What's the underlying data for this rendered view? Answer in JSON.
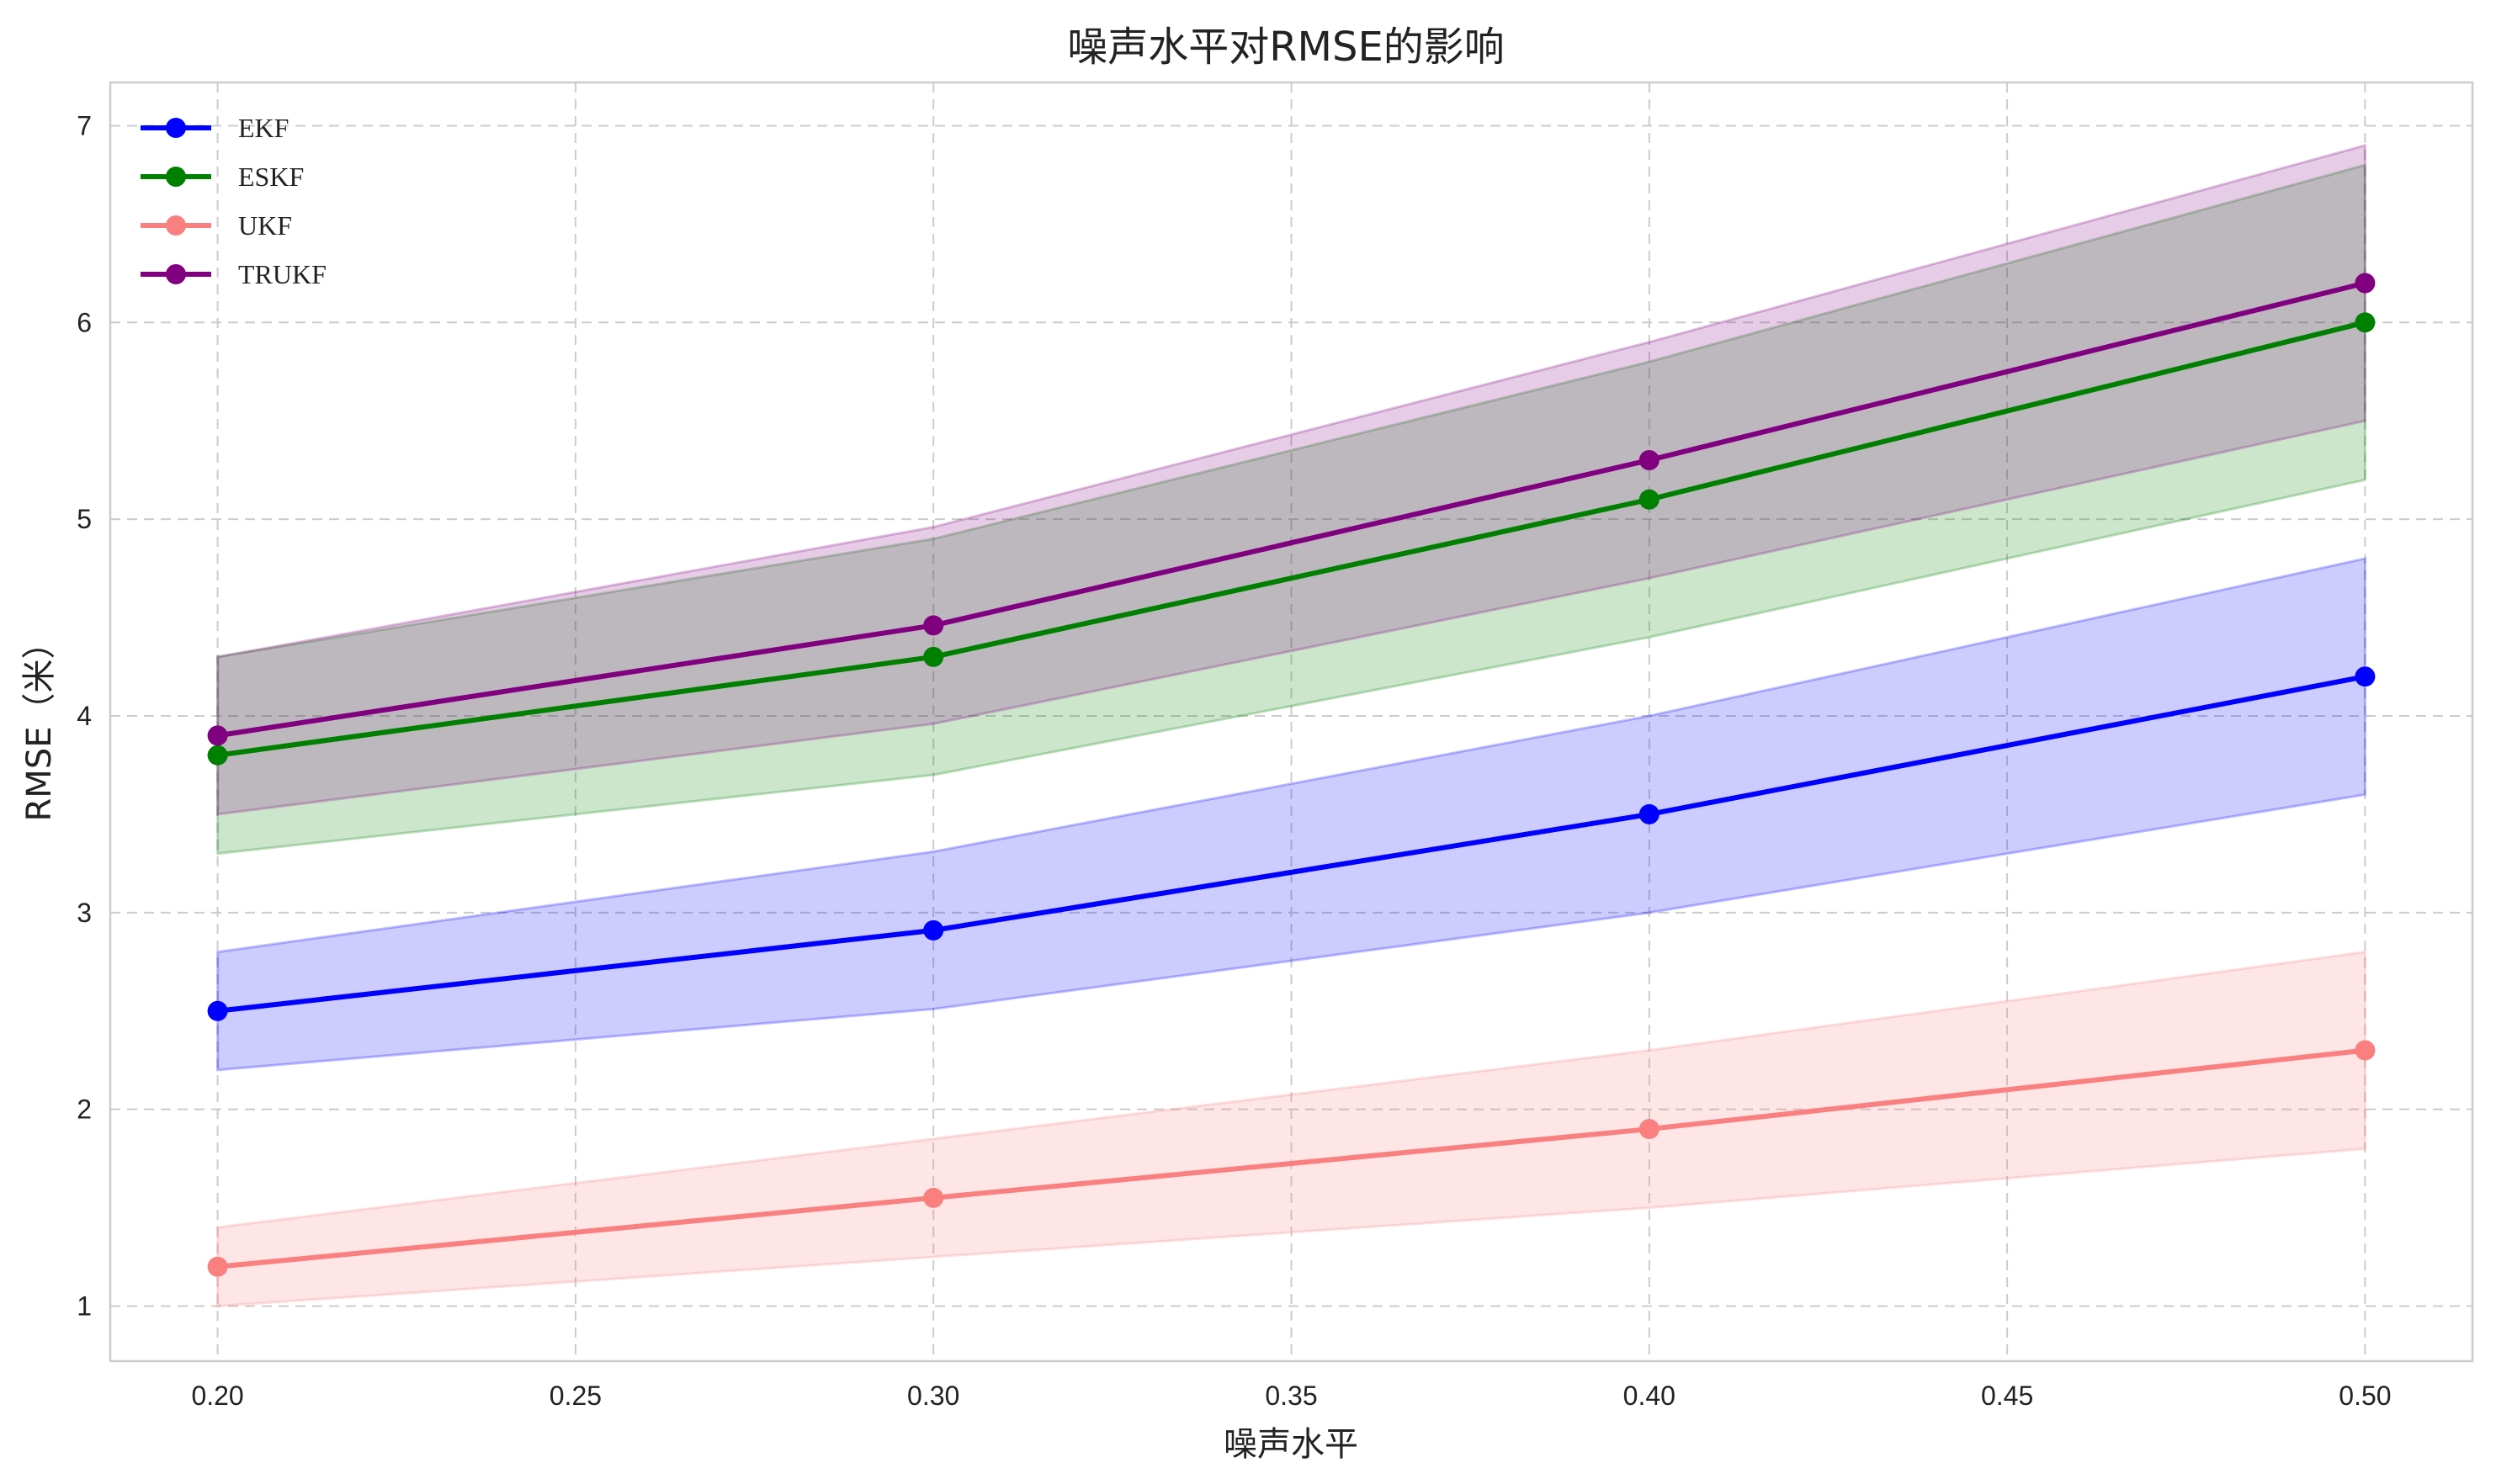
{
  "chart_data": {
    "type": "line",
    "title": "噪声水平对RMSE的影响",
    "xlabel": "噪声水平",
    "ylabel": "RMSE（米）",
    "x": [
      0.2,
      0.3,
      0.4,
      0.5
    ],
    "xlim": [
      0.185,
      0.515
    ],
    "ylim": [
      0.72,
      7.22
    ],
    "xticks": [
      0.2,
      0.25,
      0.3,
      0.35,
      0.4,
      0.45,
      0.5
    ],
    "xtick_labels": [
      "0.20",
      "0.25",
      "0.30",
      "0.35",
      "0.40",
      "0.45",
      "0.50"
    ],
    "yticks": [
      1,
      2,
      3,
      4,
      5,
      6,
      7
    ],
    "ytick_labels": [
      "1",
      "2",
      "3",
      "4",
      "5",
      "6",
      "7"
    ],
    "grid": true,
    "legend_position": "top-left",
    "series": [
      {
        "name": "EKF",
        "color": "#0000ff",
        "values": [
          2.5,
          2.91,
          3.5,
          4.2
        ],
        "lower": [
          2.2,
          2.51,
          3.0,
          3.6
        ],
        "upper": [
          2.8,
          3.31,
          4.0,
          4.8
        ]
      },
      {
        "name": "ESKF",
        "color": "#008000",
        "values": [
          3.8,
          4.3,
          5.1,
          6.0
        ],
        "lower": [
          3.3,
          3.7,
          4.4,
          5.2
        ],
        "upper": [
          4.3,
          4.9,
          5.8,
          6.8
        ]
      },
      {
        "name": "UKF",
        "color": "#fa8080",
        "values": [
          1.2,
          1.55,
          1.9,
          2.3
        ],
        "lower": [
          1.0,
          1.25,
          1.5,
          1.8
        ],
        "upper": [
          1.4,
          1.85,
          2.3,
          2.8
        ]
      },
      {
        "name": "TRUKF",
        "color": "#800080",
        "values": [
          3.9,
          4.46,
          5.3,
          6.2
        ],
        "lower": [
          3.5,
          3.96,
          4.7,
          5.5
        ],
        "upper": [
          4.3,
          4.96,
          5.9,
          6.9
        ]
      }
    ]
  }
}
